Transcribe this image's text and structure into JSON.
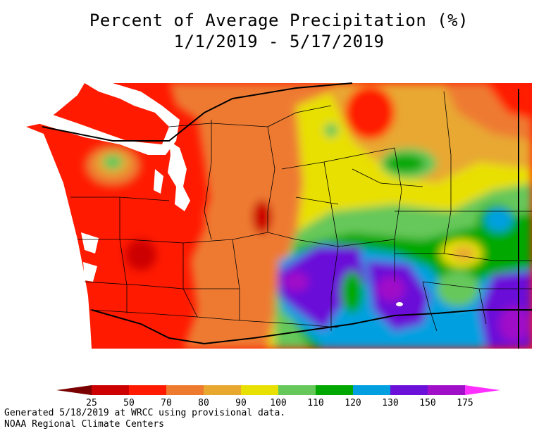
{
  "title": "Percent of Average Precipitation (%)",
  "subtitle": "1/1/2019 - 5/17/2019",
  "legend": {
    "bins": [
      {
        "label": "25",
        "color": "#a00000"
      },
      {
        "label": "50",
        "color": "#cc0000"
      },
      {
        "label": "70",
        "color": "#ff1a00"
      },
      {
        "label": "80",
        "color": "#ee7a30"
      },
      {
        "label": "90",
        "color": "#e8a830"
      },
      {
        "label": "100",
        "color": "#e8e000"
      },
      {
        "label": "110",
        "color": "#66c85a"
      },
      {
        "label": "120",
        "color": "#00a800"
      },
      {
        "label": "130",
        "color": "#00a0e0"
      },
      {
        "label": "150",
        "color": "#6a10d8"
      },
      {
        "label": "175",
        "color": "#a010c8"
      }
    ],
    "low_arrow_color": "#7a0000",
    "high_arrow_color": "#ff30ff"
  },
  "footer": {
    "line1": "Generated 5/18/2019 at WRCC using provisional data.",
    "line2": "NOAA Regional Climate Centers"
  }
}
